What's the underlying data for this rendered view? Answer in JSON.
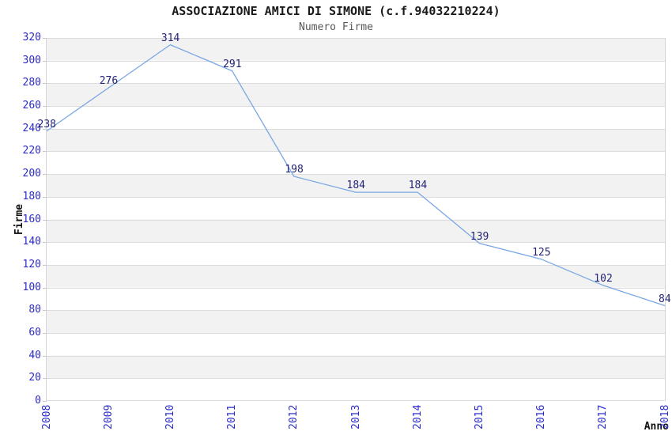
{
  "header": {
    "title": "ASSOCIAZIONE AMICI DI SIMONE (c.f.94032210224)",
    "subtitle": "Numero Firme"
  },
  "chart_data": {
    "type": "line",
    "title": "ASSOCIAZIONE AMICI DI SIMONE (c.f.94032210224)",
    "subtitle": "Numero Firme",
    "xlabel": "Anno",
    "ylabel": "Firme",
    "x": [
      "2008",
      "2009",
      "2010",
      "2011",
      "2012",
      "2013",
      "2014",
      "2015",
      "2016",
      "2017",
      "2018"
    ],
    "values": [
      238,
      276,
      314,
      291,
      198,
      184,
      184,
      139,
      125,
      102,
      84
    ],
    "ylim": [
      0,
      320
    ],
    "ytick_step": 20,
    "grid": "horizontal-bands-alternating",
    "legend": "none",
    "data_labels_visible": true,
    "colors": {
      "line": "#79a7e3",
      "tick_label": "#2b2bcc",
      "data_label": "#232377",
      "band": "#f2f2f2",
      "band_alt": "#ffffff",
      "gridline": "#dcdcdc",
      "plot_border": "#d4d4d4",
      "title": "#1a1a1a",
      "subtitle": "#575757",
      "axis_title": "#111111"
    }
  }
}
